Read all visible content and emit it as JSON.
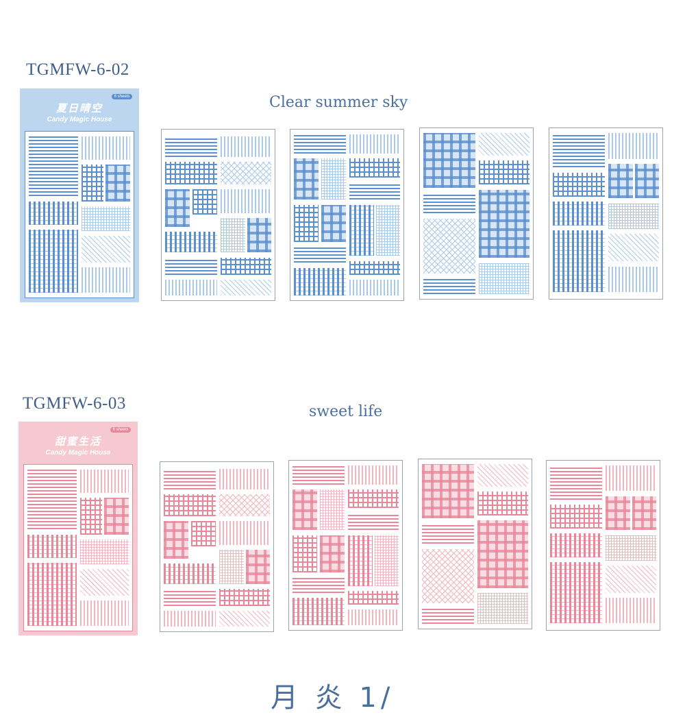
{
  "products": [
    {
      "code": "TGMFW-6-02",
      "title": "Clear summer sky",
      "pack_cn": "夏日晴空",
      "pack_en": "Candy Magic House",
      "badge": "6 sheets",
      "colors": {
        "main": "#5b8fcf",
        "light": "#a9c9ea",
        "pale": "#d6e6f6",
        "head": "#bcd6f0"
      }
    },
    {
      "code": "TGMFW-6-03",
      "title": "sweet  life",
      "pack_cn": "甜蜜生活",
      "pack_en": "Candy Magic House",
      "badge": "6 sheets",
      "colors": {
        "main": "#e8879a",
        "light": "#f2b5c0",
        "pale": "#fadde3",
        "head": "#f6c9d0"
      }
    }
  ],
  "bottom_text": "月 炎 1/"
}
